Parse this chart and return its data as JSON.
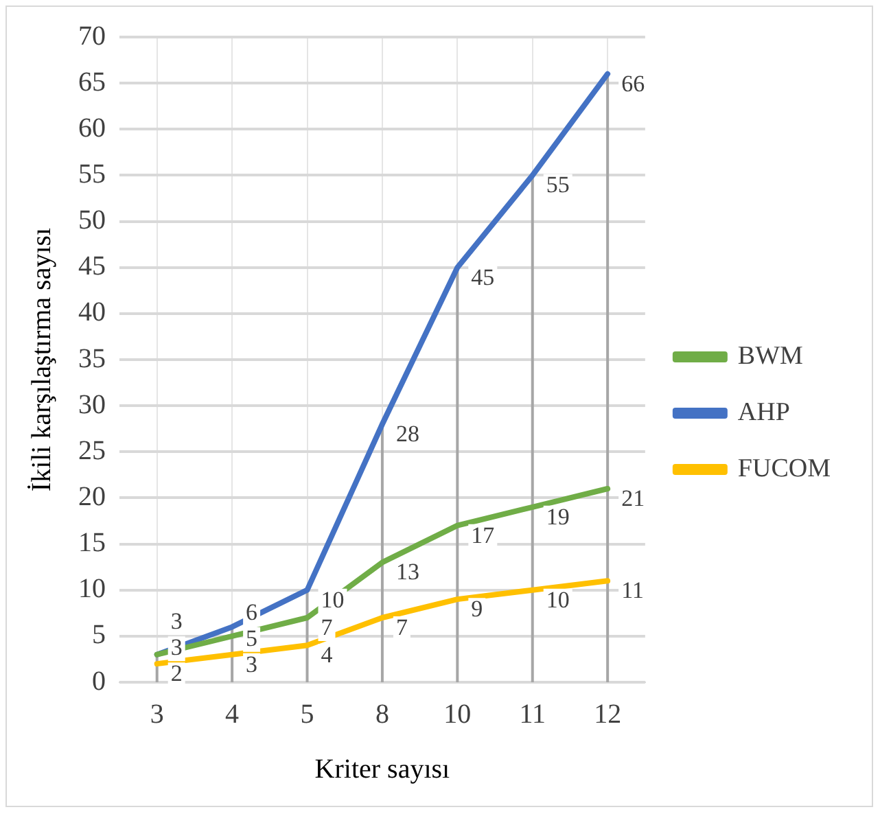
{
  "chart_data": {
    "type": "line",
    "xlabel": "Kriter sayısı",
    "ylabel": "İkili karşılaştırma sayısı",
    "categories": [
      "3",
      "4",
      "5",
      "8",
      "10",
      "11",
      "12"
    ],
    "series": [
      {
        "name": "BWM",
        "color": "#70ad47",
        "values": [
          3,
          5,
          7,
          13,
          17,
          19,
          21
        ]
      },
      {
        "name": "AHP",
        "color": "#4472c4",
        "values": [
          3,
          6,
          10,
          28,
          45,
          55,
          66
        ]
      },
      {
        "name": "FUCOM",
        "color": "#ffc000",
        "values": [
          2,
          3,
          4,
          7,
          9,
          10,
          11
        ]
      }
    ],
    "ylim": [
      0,
      70
    ],
    "yticks": [
      0,
      5,
      10,
      15,
      20,
      25,
      30,
      35,
      40,
      45,
      50,
      55,
      60,
      65,
      70
    ],
    "grid": true,
    "legend": "right",
    "marker": "none",
    "line_style": "solid",
    "data_labels": true
  }
}
